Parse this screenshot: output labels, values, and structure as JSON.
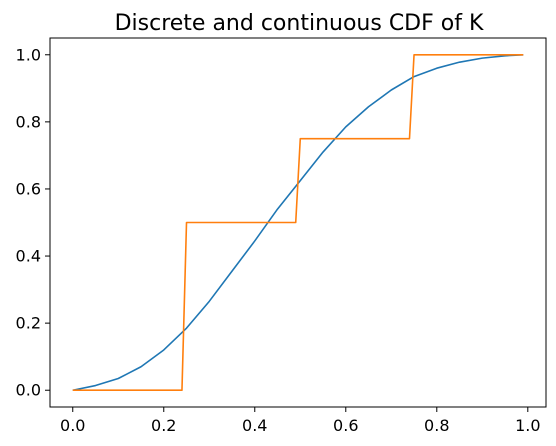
{
  "chart_data": {
    "type": "line",
    "title": "Discrete and continuous CDF of K",
    "xlabel": "",
    "ylabel": "",
    "xlim": [
      -0.05,
      1.04
    ],
    "ylim": [
      -0.05,
      1.05
    ],
    "x_ticks": [
      "0.0",
      "0.2",
      "0.4",
      "0.6",
      "0.8",
      "1.0"
    ],
    "x_tick_values": [
      0.0,
      0.2,
      0.4,
      0.6,
      0.8,
      1.0
    ],
    "y_ticks": [
      "0.0",
      "0.2",
      "0.4",
      "0.6",
      "0.8",
      "1.0"
    ],
    "y_tick_values": [
      0.0,
      0.2,
      0.4,
      0.6,
      0.8,
      1.0
    ],
    "grid": false,
    "legend": "none",
    "series": [
      {
        "color": "#1f77b4",
        "x": [
          0.0,
          0.05,
          0.1,
          0.15,
          0.2,
          0.25,
          0.3,
          0.35,
          0.4,
          0.45,
          0.5,
          0.55,
          0.6,
          0.65,
          0.7,
          0.75,
          0.8,
          0.85,
          0.9,
          0.95,
          0.99
        ],
        "y": [
          0.0,
          0.014,
          0.035,
          0.07,
          0.12,
          0.185,
          0.265,
          0.355,
          0.445,
          0.54,
          0.625,
          0.71,
          0.785,
          0.845,
          0.895,
          0.935,
          0.96,
          0.978,
          0.99,
          0.997,
          1.0
        ]
      },
      {
        "color": "#ff7f0e",
        "x": [
          0.0,
          0.24,
          0.25,
          0.49,
          0.5,
          0.74,
          0.75,
          0.99
        ],
        "y": [
          0.0,
          0.0,
          0.5,
          0.5,
          0.75,
          0.75,
          1.0,
          1.0
        ]
      }
    ]
  }
}
